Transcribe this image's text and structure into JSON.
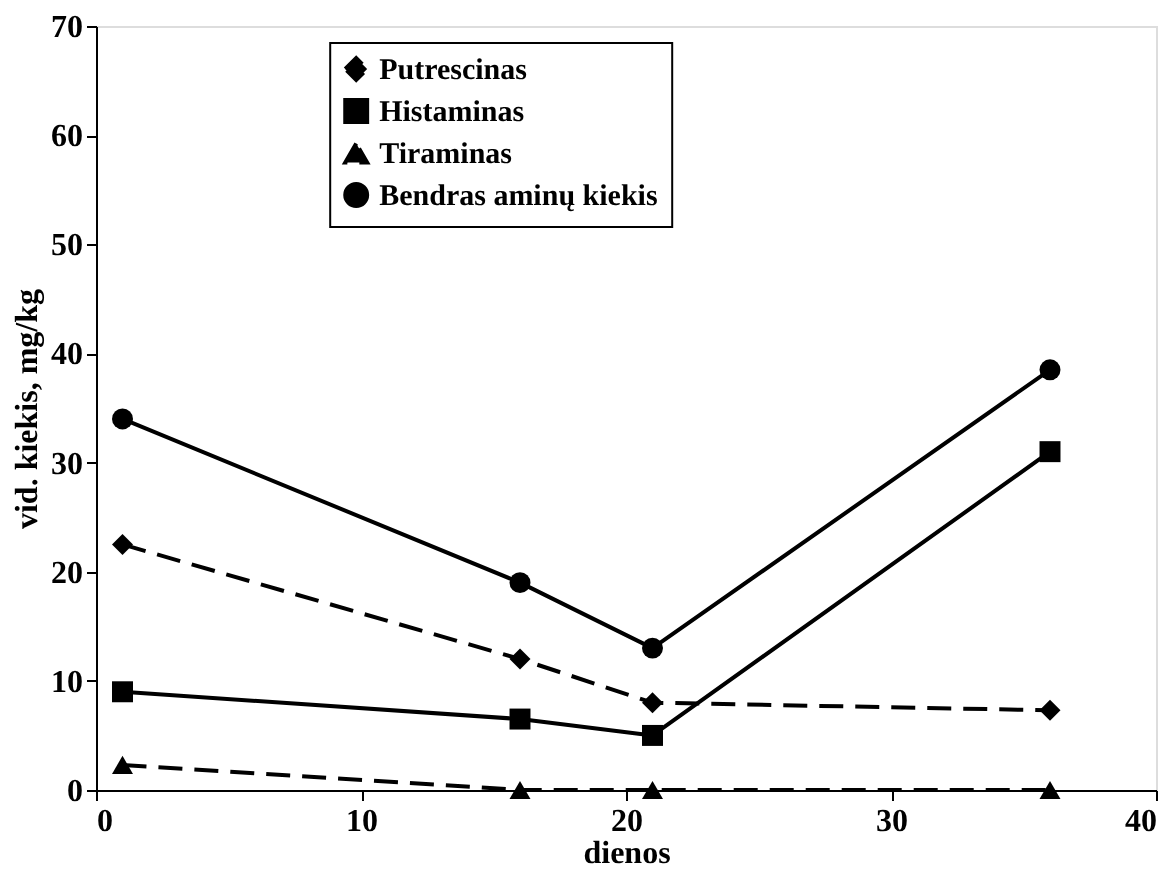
{
  "chart_data": {
    "type": "line",
    "xlabel": "dienos",
    "ylabel": "vid. kiekis, mg/kg",
    "xlim": [
      0,
      40
    ],
    "xticks": [
      0,
      10,
      20,
      30,
      40
    ],
    "ylim": [
      0,
      70
    ],
    "yticks": [
      0,
      10,
      20,
      30,
      40,
      50,
      60,
      70
    ],
    "grid": false,
    "legend": "top",
    "x": [
      1,
      16,
      21,
      36
    ],
    "series": [
      {
        "name": "Putrescinas",
        "color": "#000000",
        "marker": "diamond",
        "line_style": "dashed",
        "values": [
          22.5,
          12,
          8,
          7.3
        ]
      },
      {
        "name": "Histaminas",
        "color": "#000000",
        "marker": "square",
        "line_style": "solid",
        "values": [
          9,
          6.5,
          5,
          31
        ]
      },
      {
        "name": "Tiraminas",
        "color": "#000000",
        "marker": "triangle",
        "line_style": "dashed",
        "values": [
          2.3,
          0,
          0,
          0
        ]
      },
      {
        "name": "Bendras aminų kiekis",
        "color": "#000000",
        "marker": "circle",
        "line_style": "solid",
        "values": [
          34,
          19,
          13,
          38.5
        ]
      }
    ]
  }
}
